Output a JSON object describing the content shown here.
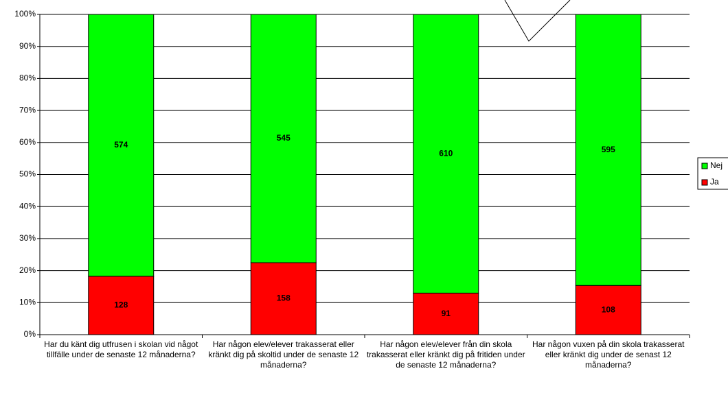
{
  "chart_data": {
    "type": "stacked_percent_bar",
    "categories": [
      "Har du känt dig utfrusen i skolan vid något tillfälle under de senaste 12 månaderna?",
      "Har någon elev/elever trakasserat eller kränkt dig på skoltid under de senaste 12 månaderna?",
      "Har någon elev/elever från din skola trakasserat eller kränkt dig på fritiden under de senaste 12 månaderna?",
      "Har någon vuxen på din skola trakasserat eller kränkt dig under de senast 12 månaderna?"
    ],
    "series": [
      {
        "name": "Ja",
        "color": "#ff0000",
        "values": [
          128,
          158,
          91,
          108
        ]
      },
      {
        "name": "Nej",
        "color": "#00ff00",
        "values": [
          574,
          545,
          610,
          595
        ]
      }
    ],
    "ylim": [
      0,
      100
    ],
    "yticks": [
      {
        "value": 0,
        "label": "0%"
      },
      {
        "value": 10,
        "label": "10%"
      },
      {
        "value": 20,
        "label": "20%"
      },
      {
        "value": 30,
        "label": "30%"
      },
      {
        "value": 40,
        "label": "40%"
      },
      {
        "value": 50,
        "label": "50%"
      },
      {
        "value": 60,
        "label": "60%"
      },
      {
        "value": 70,
        "label": "70%"
      },
      {
        "value": 80,
        "label": "80%"
      },
      {
        "value": 90,
        "label": "90%"
      },
      {
        "value": 100,
        "label": "100%"
      }
    ],
    "grid": true,
    "legend": "right"
  }
}
